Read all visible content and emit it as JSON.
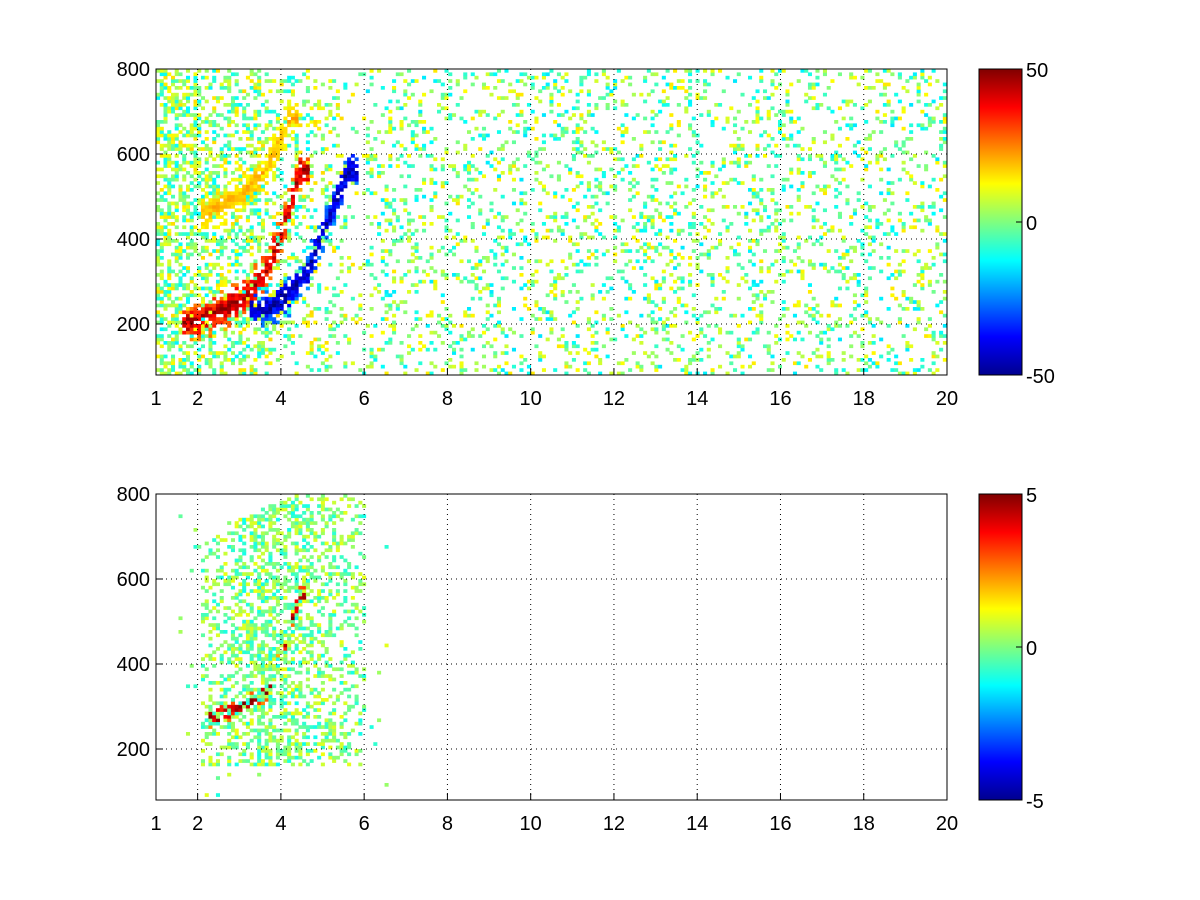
{
  "figure": {
    "background": "#ffffff"
  },
  "chart_data": [
    {
      "type": "heatmap",
      "title": "",
      "xlabel": "",
      "ylabel": "",
      "xlim": [
        1,
        20
      ],
      "ylim": [
        80,
        800
      ],
      "x_ticks": [
        1,
        2,
        4,
        6,
        8,
        10,
        12,
        14,
        16,
        18,
        20
      ],
      "y_ticks": [
        200,
        400,
        600,
        800
      ],
      "grid": true,
      "colormap": "jet",
      "colorbar": {
        "min": -50,
        "max": 50,
        "ticks": [
          50,
          0,
          -50
        ]
      },
      "features": [
        {
          "name": "positive ridge",
          "x": [
            1.8,
            2.6,
            3.2,
            3.6,
            4.0,
            4.4
          ],
          "y": [
            200,
            230,
            270,
            320,
            420,
            560
          ],
          "value": 45
        },
        {
          "name": "negative ridge",
          "x": [
            3.4,
            3.8,
            4.2,
            4.6,
            5.0,
            5.6
          ],
          "y": [
            230,
            240,
            270,
            320,
            420,
            560
          ],
          "value": -45
        },
        {
          "name": "upper positive arm",
          "x": [
            2.2,
            3.0,
            3.6,
            4.2
          ],
          "y": [
            460,
            500,
            560,
            680
          ],
          "value": 20
        }
      ],
      "speckle_region": {
        "x": [
          6,
          20
        ],
        "y": [
          80,
          800
        ],
        "values": [
          -15,
          15
        ]
      }
    },
    {
      "type": "heatmap",
      "title": "",
      "xlabel": "",
      "ylabel": "",
      "xlim": [
        1,
        20
      ],
      "ylim": [
        80,
        800
      ],
      "x_ticks": [
        1,
        2,
        4,
        6,
        8,
        10,
        12,
        14,
        16,
        18,
        20
      ],
      "y_ticks": [
        200,
        400,
        600,
        800
      ],
      "grid": true,
      "colormap": "jet",
      "colorbar": {
        "min": -5,
        "max": 5,
        "ticks": [
          5,
          0,
          -5
        ]
      },
      "features": [
        {
          "name": "positive ridge",
          "x": [
            2.4,
            3.0,
            3.6,
            4.0,
            4.4
          ],
          "y": [
            270,
            300,
            330,
            420,
            560
          ],
          "value": 5
        },
        {
          "name": "background blob",
          "x": [
            2.0,
            6.0
          ],
          "y": [
            160,
            700
          ],
          "value": 0
        }
      ],
      "speckle_region": {
        "x": [
          1.5,
          6.5
        ],
        "y": [
          80,
          800
        ],
        "values": [
          -1,
          1
        ]
      }
    }
  ]
}
